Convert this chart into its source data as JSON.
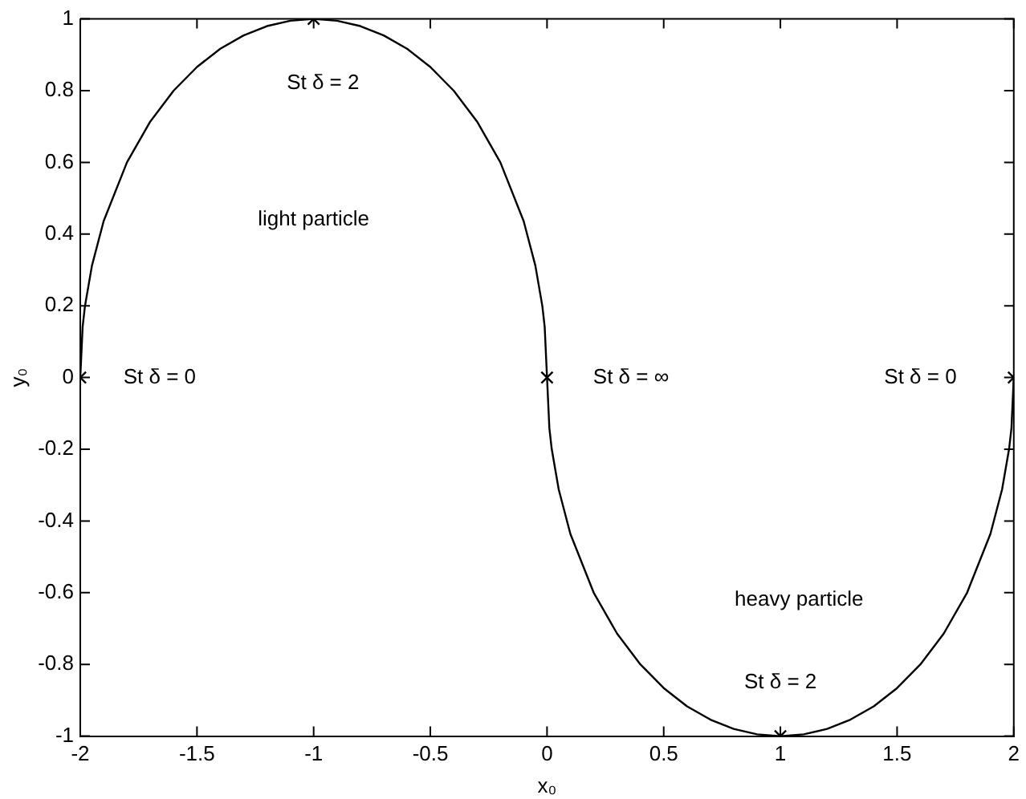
{
  "chart_data": {
    "type": "line",
    "xlabel": "x₀",
    "ylabel": "y₀",
    "xlim": [
      -2,
      2
    ],
    "xticks": [
      -2,
      -1.5,
      -1,
      -0.5,
      0,
      0.5,
      1,
      1.5,
      2
    ],
    "ylim": [
      -1,
      1
    ],
    "yticks": [
      -1,
      -0.8,
      -0.6,
      -0.4,
      -0.2,
      0,
      0.2,
      0.4,
      0.6,
      0.8,
      1
    ],
    "grid": false,
    "legend": false,
    "series": [
      {
        "color": "#000000",
        "marker": "none",
        "line_style": "solid",
        "x": [
          -2,
          -1.99,
          -1.98,
          -1.95,
          -1.9,
          -1.8,
          -1.7,
          -1.6,
          -1.5,
          -1.4,
          -1.3,
          -1.2,
          -1.1,
          -1,
          -0.9,
          -0.8,
          -0.7,
          -0.6,
          -0.5,
          -0.4,
          -0.3,
          -0.2,
          -0.1,
          -0.05,
          -0.02,
          -0.01,
          0,
          0.01,
          0.02,
          0.05,
          0.1,
          0.2,
          0.3,
          0.4,
          0.5,
          0.6,
          0.7,
          0.8,
          0.9,
          1,
          1.1,
          1.2,
          1.3,
          1.4,
          1.5,
          1.6,
          1.7,
          1.8,
          1.9,
          1.95,
          1.98,
          1.99,
          2
        ],
        "values": [
          0,
          0.141,
          0.199,
          0.312,
          0.436,
          0.6,
          0.714,
          0.8,
          0.866,
          0.917,
          0.954,
          0.98,
          0.995,
          1,
          0.995,
          0.98,
          0.954,
          0.917,
          0.866,
          0.8,
          0.714,
          0.6,
          0.436,
          0.312,
          0.199,
          0.141,
          0,
          -0.141,
          -0.199,
          -0.312,
          -0.436,
          -0.6,
          -0.714,
          -0.8,
          -0.866,
          -0.917,
          -0.954,
          -0.98,
          -0.995,
          -1,
          -0.995,
          -0.98,
          -0.954,
          -0.917,
          -0.866,
          -0.8,
          -0.714,
          -0.6,
          -0.436,
          -0.312,
          -0.199,
          -0.141,
          0
        ]
      },
      {
        "type": "scatter",
        "color": "#000000",
        "marker": "cross",
        "x": [
          -2,
          -1,
          0,
          1,
          2
        ],
        "values": [
          0,
          1,
          0,
          -1,
          0
        ]
      }
    ],
    "annotations": [
      "St δ = 0",
      "St δ = 2",
      "light particle",
      "St δ = ∞",
      "St δ = 0",
      "heavy particle",
      "St δ = 2"
    ]
  }
}
